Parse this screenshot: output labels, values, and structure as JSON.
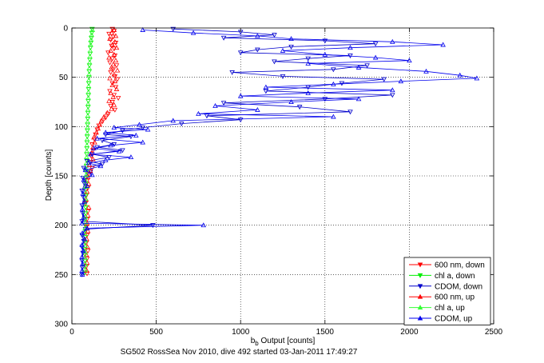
{
  "chart_data": {
    "type": "scatter",
    "xlabel_main": "b",
    "xlabel_sub": "b",
    "xlabel_rest": " Output [counts]",
    "ylabel": "Depth [counts]",
    "footer": "SG502 RossSea Nov 2010, dive 492 started 03-Jan-2011 17:49:27",
    "xlim": [
      0,
      2500
    ],
    "ylim": [
      0,
      300
    ],
    "y_reversed": true,
    "xticks": [
      "0",
      "500",
      "1000",
      "1500",
      "2000",
      "2500"
    ],
    "yticks": [
      "0",
      "50",
      "100",
      "150",
      "200",
      "250",
      "300"
    ],
    "grid": true,
    "legend_position": "bottom-right",
    "series": [
      {
        "name": "600 nm, down",
        "color": "#ff0000",
        "marker": "triangle-down",
        "line": false,
        "points": [
          [
            240,
            1
          ],
          [
            250,
            3
          ],
          [
            220,
            6
          ],
          [
            245,
            9
          ],
          [
            230,
            12
          ],
          [
            260,
            15
          ],
          [
            235,
            18
          ],
          [
            250,
            21
          ],
          [
            215,
            25
          ],
          [
            255,
            28
          ],
          [
            240,
            31
          ],
          [
            225,
            35
          ],
          [
            265,
            38
          ],
          [
            245,
            42
          ],
          [
            230,
            45
          ],
          [
            255,
            49
          ],
          [
            270,
            52
          ],
          [
            240,
            56
          ],
          [
            260,
            60
          ],
          [
            225,
            64
          ],
          [
            250,
            68
          ],
          [
            275,
            71
          ],
          [
            240,
            75
          ],
          [
            230,
            79
          ],
          [
            255,
            83
          ],
          [
            215,
            87
          ],
          [
            200,
            91
          ],
          [
            180,
            95
          ],
          [
            160,
            99
          ],
          [
            150,
            103
          ],
          [
            140,
            108
          ],
          [
            135,
            113
          ],
          [
            120,
            118
          ],
          [
            125,
            124
          ],
          [
            115,
            130
          ],
          [
            110,
            136
          ],
          [
            120,
            142
          ],
          [
            100,
            148
          ],
          [
            90,
            155
          ],
          [
            95,
            162
          ],
          [
            85,
            170
          ],
          [
            80,
            178
          ],
          [
            95,
            186
          ],
          [
            90,
            194
          ],
          [
            85,
            202
          ],
          [
            90,
            210
          ],
          [
            85,
            218
          ],
          [
            95,
            226
          ],
          [
            90,
            234
          ],
          [
            85,
            242
          ],
          [
            90,
            249
          ]
        ]
      },
      {
        "name": "chl a, down",
        "color": "#00ee00",
        "marker": "triangle-down",
        "line": false,
        "points": [
          [
            120,
            1
          ],
          [
            118,
            5
          ],
          [
            115,
            10
          ],
          [
            112,
            15
          ],
          [
            110,
            20
          ],
          [
            108,
            26
          ],
          [
            106,
            32
          ],
          [
            104,
            38
          ],
          [
            103,
            44
          ],
          [
            101,
            50
          ],
          [
            100,
            56
          ],
          [
            99,
            62
          ],
          [
            98,
            68
          ],
          [
            97,
            74
          ],
          [
            96,
            80
          ],
          [
            95,
            86
          ],
          [
            94,
            92
          ],
          [
            93,
            98
          ],
          [
            92,
            104
          ],
          [
            91,
            110
          ],
          [
            90,
            116
          ],
          [
            89,
            122
          ],
          [
            88,
            128
          ],
          [
            87,
            134
          ],
          [
            86,
            140
          ],
          [
            85,
            146
          ],
          [
            84,
            152
          ],
          [
            83,
            158
          ],
          [
            82,
            164
          ],
          [
            82,
            170
          ],
          [
            81,
            176
          ],
          [
            81,
            182
          ],
          [
            80,
            188
          ],
          [
            80,
            194
          ],
          [
            80,
            200
          ],
          [
            79,
            206
          ],
          [
            79,
            212
          ],
          [
            79,
            218
          ],
          [
            79,
            224
          ],
          [
            78,
            230
          ],
          [
            78,
            236
          ],
          [
            78,
            242
          ],
          [
            78,
            248
          ]
        ]
      },
      {
        "name": "CDOM, down",
        "color": "#0000cc",
        "marker": "triangle-down",
        "line": true,
        "points": [
          [
            600,
            1
          ],
          [
            1000,
            4
          ],
          [
            1200,
            7
          ],
          [
            900,
            10
          ],
          [
            1500,
            13
          ],
          [
            1800,
            16
          ],
          [
            1300,
            19
          ],
          [
            1100,
            22
          ],
          [
            1000,
            25
          ],
          [
            1650,
            28
          ],
          [
            1400,
            31
          ],
          [
            1200,
            34
          ],
          [
            1750,
            38
          ],
          [
            1550,
            42
          ],
          [
            950,
            45
          ],
          [
            1250,
            49
          ],
          [
            1850,
            52
          ],
          [
            1600,
            56
          ],
          [
            1400,
            60
          ],
          [
            1150,
            64
          ],
          [
            1900,
            68
          ],
          [
            1500,
            72
          ],
          [
            900,
            76
          ],
          [
            1350,
            80
          ],
          [
            1650,
            85
          ],
          [
            800,
            89
          ],
          [
            1000,
            93
          ],
          [
            650,
            97
          ],
          [
            420,
            101
          ],
          [
            300,
            104
          ],
          [
            200,
            108
          ],
          [
            350,
            110
          ],
          [
            180,
            114
          ],
          [
            250,
            118
          ],
          [
            150,
            121
          ],
          [
            300,
            124
          ],
          [
            120,
            128
          ],
          [
            220,
            131
          ],
          [
            90,
            135
          ],
          [
            180,
            138
          ],
          [
            70,
            142
          ],
          [
            110,
            146
          ],
          [
            65,
            152
          ],
          [
            75,
            158
          ],
          [
            60,
            165
          ],
          [
            70,
            172
          ],
          [
            60,
            180
          ],
          [
            65,
            188
          ],
          [
            60,
            196
          ],
          [
            480,
            200
          ],
          [
            80,
            204
          ],
          [
            60,
            210
          ],
          [
            70,
            216
          ],
          [
            60,
            222
          ],
          [
            65,
            228
          ],
          [
            60,
            236
          ],
          [
            62,
            243
          ],
          [
            60,
            250
          ]
        ]
      },
      {
        "name": "600 nm, up",
        "color": "#ff0000",
        "marker": "triangle-up",
        "line": false,
        "points": [
          [
            250,
            2
          ],
          [
            235,
            5
          ],
          [
            260,
            8
          ],
          [
            225,
            11
          ],
          [
            255,
            14
          ],
          [
            240,
            17
          ],
          [
            265,
            20
          ],
          [
            230,
            23
          ],
          [
            250,
            27
          ],
          [
            220,
            30
          ],
          [
            260,
            33
          ],
          [
            245,
            37
          ],
          [
            235,
            40
          ],
          [
            270,
            43
          ],
          [
            250,
            47
          ],
          [
            225,
            51
          ],
          [
            255,
            54
          ],
          [
            240,
            58
          ],
          [
            265,
            62
          ],
          [
            230,
            66
          ],
          [
            245,
            70
          ],
          [
            220,
            74
          ],
          [
            250,
            78
          ],
          [
            235,
            82
          ],
          [
            210,
            86
          ],
          [
            190,
            90
          ],
          [
            175,
            94
          ],
          [
            165,
            98
          ],
          [
            155,
            102
          ],
          [
            145,
            106
          ],
          [
            130,
            111
          ],
          [
            135,
            116
          ],
          [
            125,
            121
          ],
          [
            115,
            127
          ],
          [
            125,
            133
          ],
          [
            105,
            139
          ],
          [
            110,
            145
          ],
          [
            95,
            151
          ],
          [
            100,
            158
          ],
          [
            90,
            166
          ],
          [
            85,
            174
          ],
          [
            100,
            182
          ],
          [
            95,
            190
          ],
          [
            90,
            198
          ],
          [
            95,
            206
          ],
          [
            88,
            214
          ],
          [
            92,
            222
          ],
          [
            86,
            230
          ],
          [
            90,
            238
          ],
          [
            88,
            246
          ]
        ]
      },
      {
        "name": "chl a, up",
        "color": "#33ff33",
        "marker": "triangle-up",
        "line": false,
        "points": [
          [
            122,
            2
          ],
          [
            117,
            7
          ],
          [
            114,
            12
          ],
          [
            111,
            17
          ],
          [
            109,
            23
          ],
          [
            107,
            29
          ],
          [
            105,
            35
          ],
          [
            103,
            41
          ],
          [
            102,
            47
          ],
          [
            100,
            53
          ],
          [
            99,
            59
          ],
          [
            98,
            65
          ],
          [
            97,
            71
          ],
          [
            96,
            77
          ],
          [
            95,
            83
          ],
          [
            94,
            89
          ],
          [
            93,
            95
          ],
          [
            92,
            101
          ],
          [
            91,
            107
          ],
          [
            90,
            113
          ],
          [
            89,
            119
          ],
          [
            88,
            125
          ],
          [
            87,
            131
          ],
          [
            86,
            137
          ],
          [
            85,
            143
          ],
          [
            84,
            149
          ],
          [
            83,
            155
          ],
          [
            82,
            161
          ],
          [
            82,
            167
          ],
          [
            81,
            173
          ],
          [
            81,
            179
          ],
          [
            80,
            185
          ],
          [
            80,
            191
          ],
          [
            80,
            197
          ],
          [
            79,
            203
          ],
          [
            79,
            209
          ],
          [
            79,
            215
          ],
          [
            79,
            221
          ],
          [
            78,
            227
          ],
          [
            78,
            233
          ],
          [
            78,
            239
          ],
          [
            78,
            245
          ]
        ]
      },
      {
        "name": "CDOM, up",
        "color": "#0000ee",
        "marker": "triangle-up",
        "line": true,
        "points": [
          [
            420,
            2
          ],
          [
            720,
            5
          ],
          [
            1100,
            8
          ],
          [
            1300,
            11
          ],
          [
            1900,
            14
          ],
          [
            2200,
            17
          ],
          [
            1650,
            20
          ],
          [
            1250,
            23
          ],
          [
            1500,
            27
          ],
          [
            1800,
            30
          ],
          [
            2000,
            33
          ],
          [
            1400,
            36
          ],
          [
            1700,
            40
          ],
          [
            2100,
            44
          ],
          [
            2300,
            48
          ],
          [
            2400,
            51
          ],
          [
            1950,
            54
          ],
          [
            1550,
            57
          ],
          [
            1150,
            60
          ],
          [
            1900,
            63
          ],
          [
            1400,
            66
          ],
          [
            1000,
            69
          ],
          [
            1700,
            72
          ],
          [
            1300,
            75
          ],
          [
            850,
            79
          ],
          [
            1100,
            83
          ],
          [
            750,
            87
          ],
          [
            1550,
            90
          ],
          [
            600,
            94
          ],
          [
            400,
            98
          ],
          [
            250,
            101
          ],
          [
            450,
            103
          ],
          [
            200,
            106
          ],
          [
            380,
            109
          ],
          [
            150,
            112
          ],
          [
            420,
            116
          ],
          [
            230,
            119
          ],
          [
            130,
            122
          ],
          [
            280,
            125
          ],
          [
            110,
            128
          ],
          [
            350,
            131
          ],
          [
            200,
            134
          ],
          [
            100,
            137
          ],
          [
            170,
            140
          ],
          [
            80,
            144
          ],
          [
            120,
            149
          ],
          [
            70,
            154
          ],
          [
            90,
            160
          ],
          [
            65,
            168
          ],
          [
            75,
            176
          ],
          [
            62,
            184
          ],
          [
            70,
            192
          ],
          [
            60,
            198
          ],
          [
            780,
            200
          ],
          [
            90,
            203
          ],
          [
            62,
            208
          ],
          [
            75,
            214
          ],
          [
            60,
            220
          ],
          [
            68,
            226
          ],
          [
            60,
            232
          ],
          [
            64,
            239
          ],
          [
            60,
            246
          ],
          [
            62,
            250
          ]
        ]
      }
    ]
  }
}
